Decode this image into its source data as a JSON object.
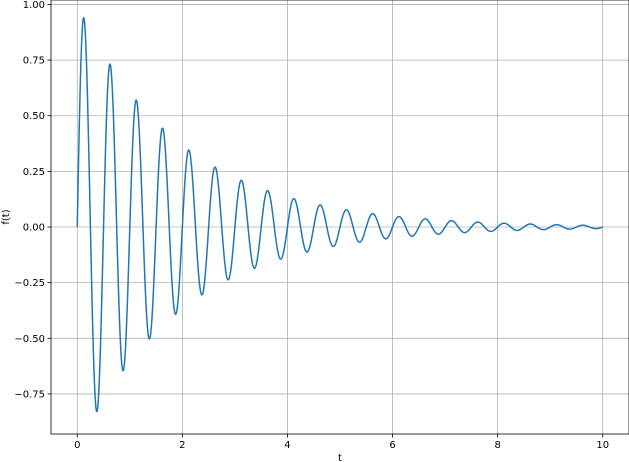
{
  "chart_data": {
    "type": "line",
    "title": "",
    "xlabel": "t",
    "ylabel": "f(t)",
    "xlim": [
      -0.5,
      10.5
    ],
    "ylim": [
      -0.93,
      1.02
    ],
    "grid": true,
    "legend": "none",
    "xticks": [
      0,
      2,
      4,
      6,
      8,
      10
    ],
    "xtick_labels": [
      "0",
      "2",
      "4",
      "6",
      "8",
      "10"
    ],
    "yticks": [
      -0.75,
      -0.5,
      -0.25,
      0.0,
      0.25,
      0.5,
      0.75,
      1.0
    ],
    "ytick_labels": [
      "−0.75",
      "−0.50",
      "−0.25",
      "0.00",
      "0.25",
      "0.50",
      "0.75",
      "1.00"
    ],
    "series": [
      {
        "color": "#1f77b4",
        "function": "exp(-0.5*t)*sin(4*pi*t)",
        "x_range": [
          0,
          10
        ],
        "sample_points": [
          {
            "x": 0.0,
            "y": 0.0
          },
          {
            "x": 0.125,
            "y": 0.94
          },
          {
            "x": 0.375,
            "y": -0.83
          },
          {
            "x": 0.625,
            "y": 0.73
          },
          {
            "x": 0.875,
            "y": -0.65
          },
          {
            "x": 1.125,
            "y": 0.57
          },
          {
            "x": 1.375,
            "y": -0.5
          },
          {
            "x": 1.625,
            "y": 0.44
          },
          {
            "x": 1.875,
            "y": -0.39
          },
          {
            "x": 2.125,
            "y": 0.35
          },
          {
            "x": 2.625,
            "y": 0.27
          },
          {
            "x": 3.125,
            "y": 0.21
          },
          {
            "x": 3.625,
            "y": 0.16
          },
          {
            "x": 4.125,
            "y": 0.13
          },
          {
            "x": 5.125,
            "y": 0.08
          },
          {
            "x": 6.125,
            "y": 0.05
          },
          {
            "x": 8.125,
            "y": 0.02
          },
          {
            "x": 10.0,
            "y": 0.0
          }
        ]
      }
    ]
  }
}
